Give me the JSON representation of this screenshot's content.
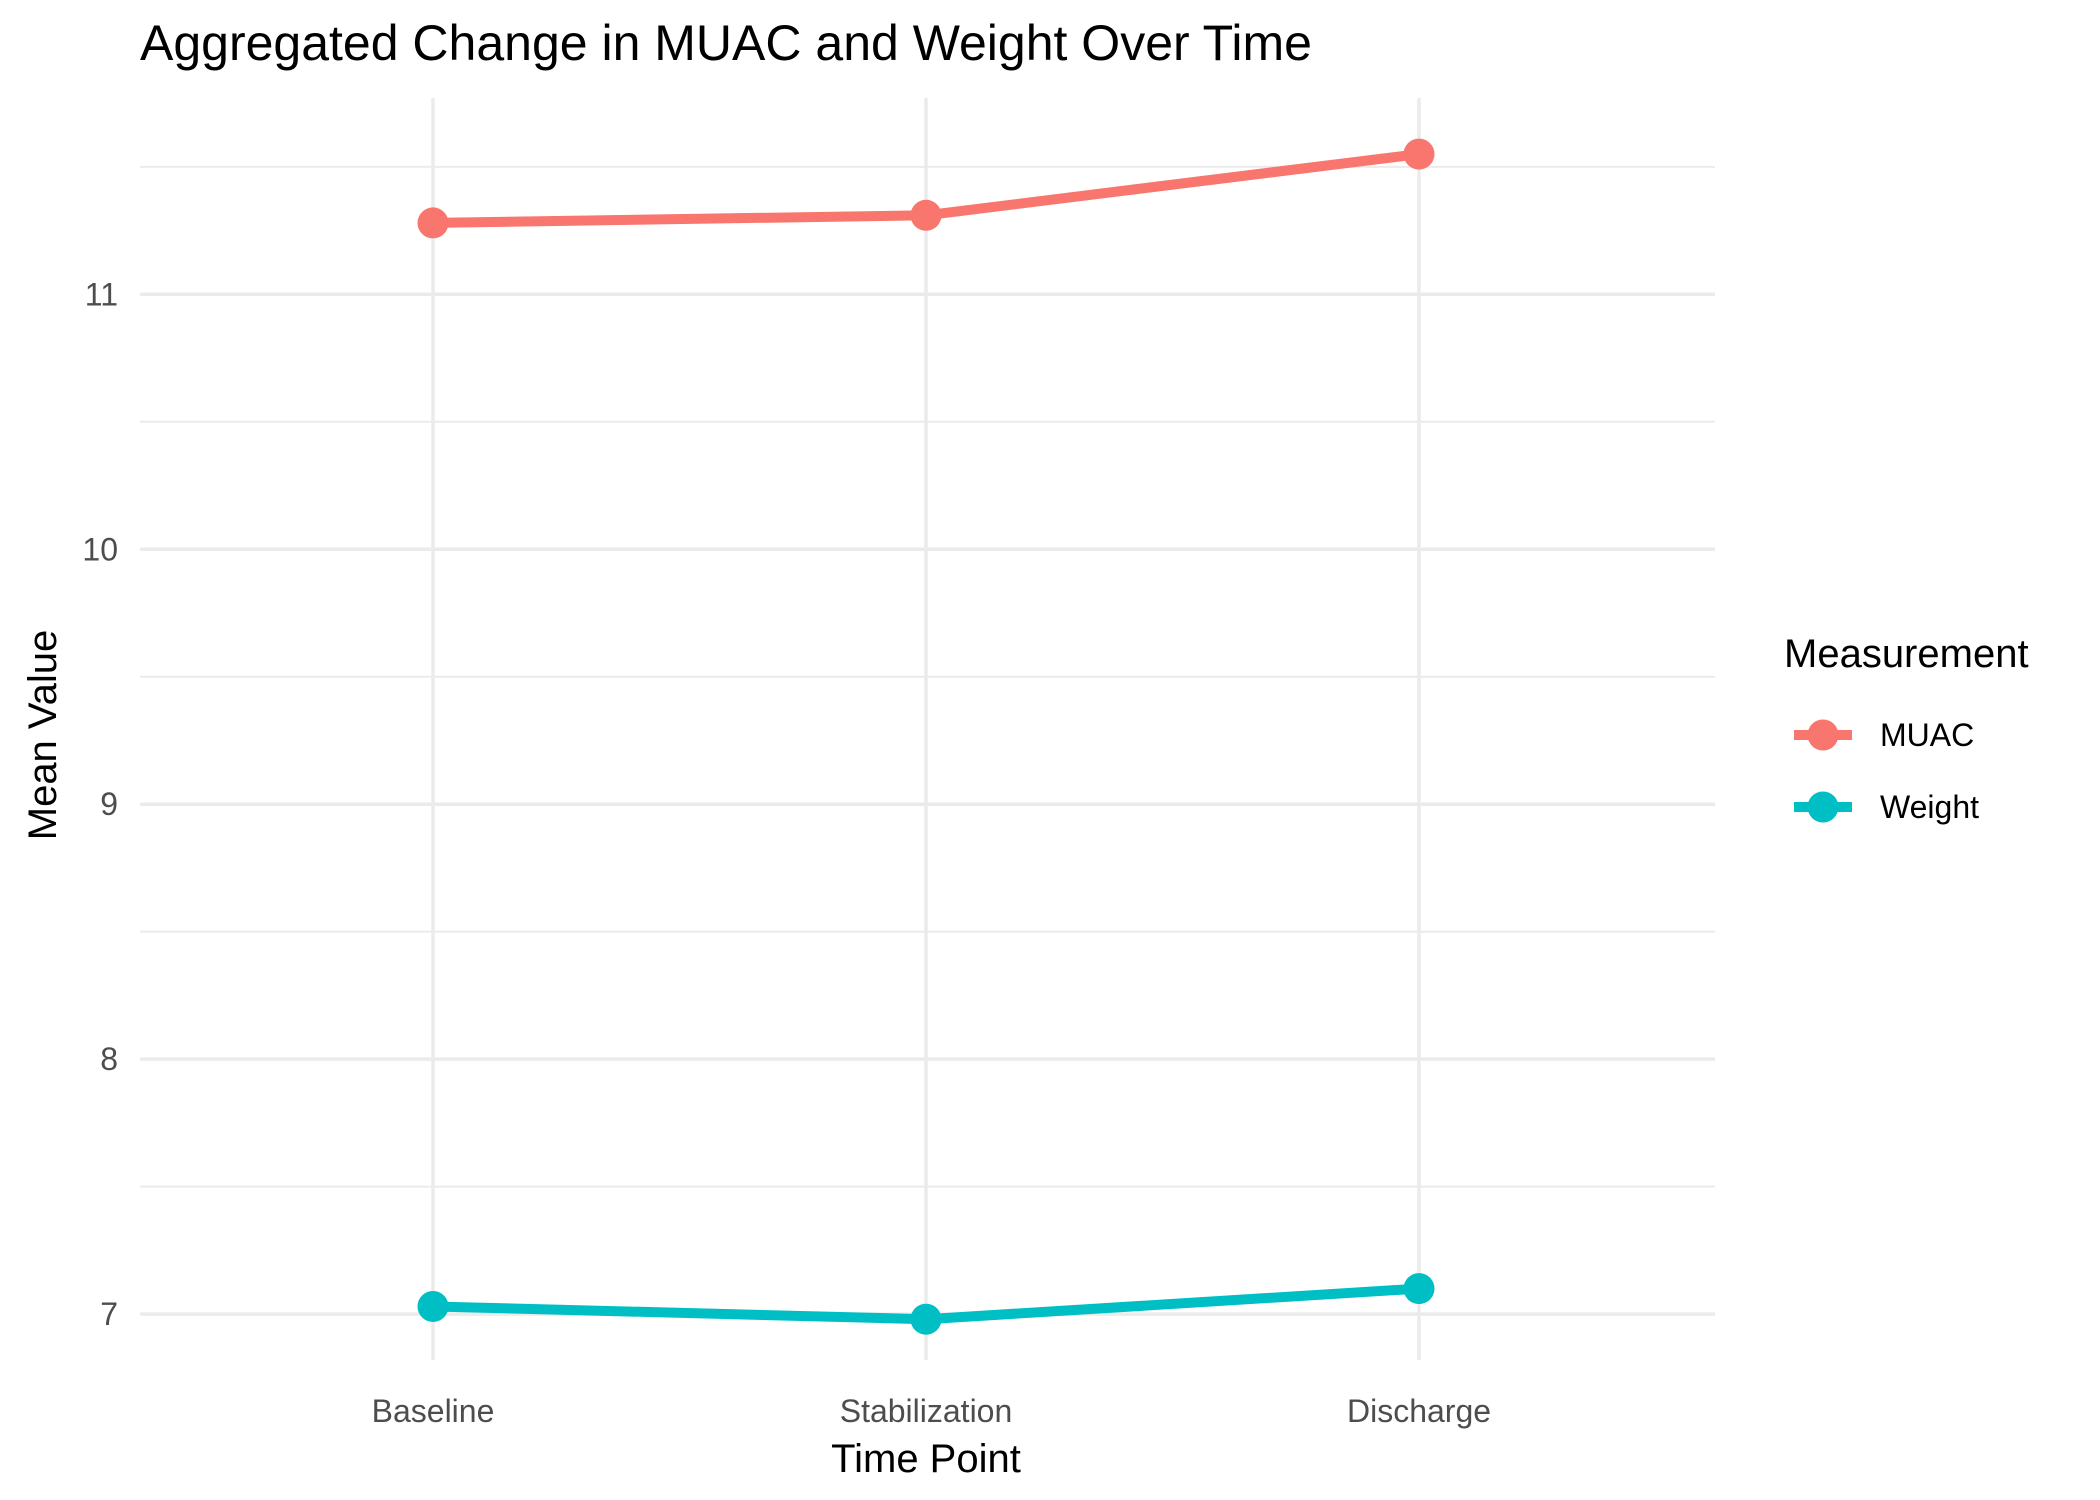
{
  "colors": {
    "muac": "#F8766D",
    "weight": "#00BFC4",
    "grid": "#ebebeb",
    "tick_text": "#4d4d4d"
  },
  "chart_data": {
    "type": "line",
    "title": "Aggregated Change in MUAC and Weight Over Time",
    "xlabel": "Time Point",
    "ylabel": "Mean Value",
    "categories": [
      "Baseline",
      "Stabilization",
      "Discharge"
    ],
    "ylim": [
      6.82,
      11.77
    ],
    "yticks": [
      7,
      8,
      9,
      10,
      11
    ],
    "yticks_minor": [
      7.5,
      8.5,
      9.5,
      10.5,
      11.5
    ],
    "yticklabels": [
      "7",
      "8",
      "9",
      "10",
      "11"
    ],
    "grid": true,
    "legend": {
      "title": "Measurement",
      "position": "right"
    },
    "series": [
      {
        "name": "MUAC",
        "color": "#F8766D",
        "values": [
          11.28,
          11.31,
          11.55
        ]
      },
      {
        "name": "Weight",
        "color": "#00BFC4",
        "values": [
          7.03,
          6.98,
          7.1
        ]
      }
    ]
  }
}
